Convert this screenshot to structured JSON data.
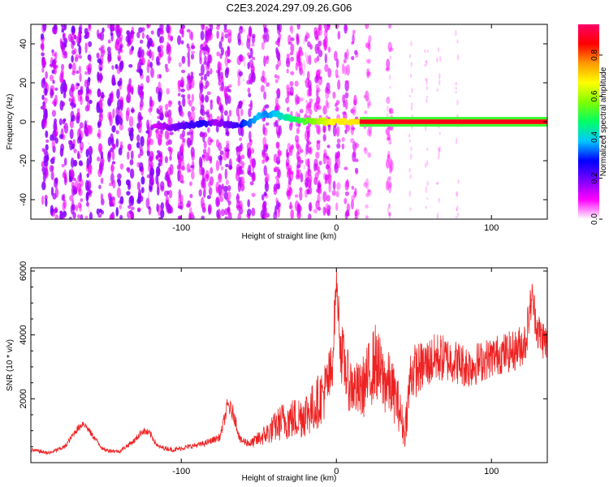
{
  "title": "C2E3.2024.297.09.26.G06",
  "chart_data": [
    {
      "type": "heatmap",
      "name": "spectrogram",
      "xlabel": "Height of straight line (km)",
      "ylabel": "Frequency (Hz)",
      "xlim": [
        -197,
        136
      ],
      "ylim": [
        -50,
        50
      ],
      "xticks": [
        -100,
        0,
        100
      ],
      "yticks": [
        -40,
        -20,
        0,
        20,
        40
      ],
      "colorbar": {
        "label": "Normalized spectral amplitude",
        "range": [
          0,
          0.95
        ],
        "ticks": [
          0.0,
          0.2,
          0.4,
          0.6,
          0.8
        ],
        "colormap": [
          "#ffffff",
          "#ff00ff",
          "#7a00ff",
          "#0000ff",
          "#00c8ff",
          "#00ff66",
          "#80ff00",
          "#ffff00",
          "#ff9900",
          "#ff0000",
          "#ff0066"
        ]
      },
      "features": {
        "noise_x_range": [
          -197,
          40
        ],
        "noise_band_heights_km": [
          -188,
          -182,
          -176,
          -170,
          -166,
          -160,
          -152,
          -145,
          -140,
          -133,
          -126,
          -120,
          -114,
          -108,
          -100,
          -94,
          -86,
          -82,
          -75,
          -70,
          -62,
          -55,
          -46,
          -38,
          -30,
          -24,
          -18,
          -12,
          -6,
          0,
          6,
          12,
          20,
          34
        ],
        "faint_band_heights_km": [
          -160,
          -120,
          -60,
          -20,
          34,
          48,
          58,
          66,
          78
        ],
        "tone_trace": {
          "x": [
            -118,
            -105,
            -95,
            -85,
            -78,
            -72,
            -65,
            -60,
            -55,
            -50,
            -45,
            -40,
            -35,
            -30,
            -25,
            -20,
            -15,
            -10,
            -5,
            0,
            5,
            10,
            20,
            40,
            80,
            136
          ],
          "freq_hz": [
            -2,
            -3,
            -1.5,
            -1,
            -0.5,
            -1,
            -2,
            -1,
            0,
            3,
            3.5,
            4,
            3,
            2,
            1,
            0.5,
            0.3,
            0.2,
            0.1,
            0,
            0,
            0,
            0,
            0,
            0,
            0
          ],
          "amplitude": [
            0.15,
            0.25,
            0.3,
            0.35,
            0.2,
            0.25,
            0.3,
            0.4,
            0.45,
            0.5,
            0.45,
            0.5,
            0.55,
            0.6,
            0.65,
            0.7,
            0.75,
            0.8,
            0.85,
            0.9,
            0.9,
            0.9,
            0.92,
            0.95,
            0.95,
            0.95
          ]
        }
      }
    },
    {
      "type": "line",
      "name": "snr",
      "xlabel": "Height of straight line (km)",
      "ylabel": "SNR (10 * v/v)",
      "xlim": [
        -197,
        136
      ],
      "ylim": [
        0,
        6100
      ],
      "xticks": [
        -100,
        0,
        100
      ],
      "yticks": [
        2000,
        4000,
        6000
      ],
      "line_color": "#ee2222",
      "x": [
        -197,
        -185,
        -175,
        -168,
        -163,
        -158,
        -150,
        -140,
        -130,
        -125,
        -120,
        -115,
        -105,
        -95,
        -85,
        -75,
        -70,
        -66,
        -62,
        -55,
        -45,
        -35,
        -25,
        -15,
        -8,
        -3,
        0,
        3,
        8,
        15,
        20,
        25,
        30,
        35,
        40,
        44,
        48,
        55,
        65,
        75,
        85,
        95,
        105,
        115,
        122,
        126,
        130,
        136
      ],
      "y": [
        400,
        300,
        500,
        1000,
        1250,
        900,
        400,
        350,
        700,
        1000,
        900,
        500,
        400,
        500,
        600,
        800,
        1800,
        1500,
        700,
        600,
        900,
        1300,
        1400,
        1700,
        2200,
        2800,
        5700,
        3500,
        2500,
        2200,
        2600,
        3200,
        2600,
        2400,
        1800,
        900,
        2800,
        3000,
        3300,
        3200,
        3000,
        3200,
        3400,
        3500,
        3800,
        5200,
        4100,
        3700
      ],
      "noise_amplitude": [
        60,
        60,
        70,
        110,
        130,
        100,
        60,
        60,
        90,
        120,
        120,
        70,
        70,
        80,
        90,
        120,
        300,
        260,
        120,
        150,
        350,
        600,
        700,
        800,
        900,
        1000,
        450,
        1000,
        900,
        900,
        1100,
        1200,
        1100,
        1000,
        800,
        500,
        900,
        800,
        800,
        700,
        700,
        650,
        650,
        650,
        700,
        600,
        650,
        650
      ]
    }
  ]
}
